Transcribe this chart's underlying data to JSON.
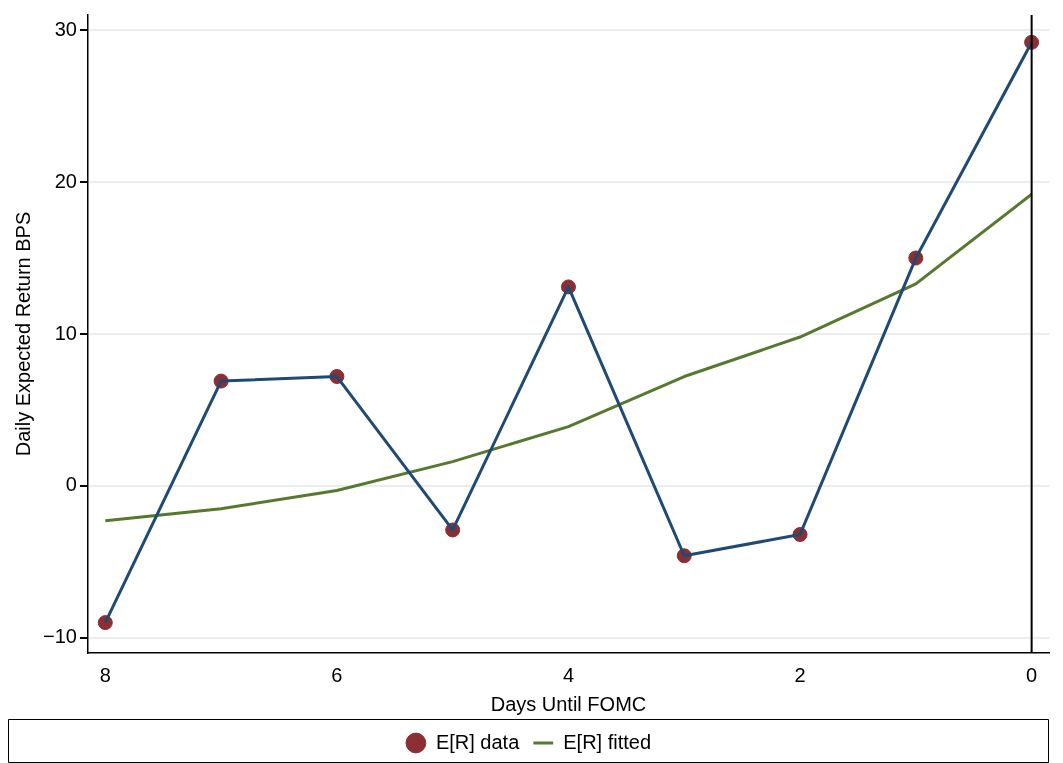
{
  "chart_data": {
    "type": "line",
    "xlabel": "Days Until FOMC",
    "ylabel": "Daily Expected Return BPS",
    "x": [
      8,
      7,
      6,
      5,
      4,
      3,
      2,
      1,
      0
    ],
    "series": [
      {
        "color": "#1f4a73",
        "values": [
          -9,
          6.9,
          7.2,
          -2.9,
          13.1,
          -4.6,
          -3.2,
          15.0,
          29.2
        ]
      },
      {
        "type": "scatter",
        "name": "E[R] data",
        "color": "#8b2f35",
        "marker": "circle",
        "values": [
          -9,
          6.9,
          7.2,
          -2.9,
          13.1,
          -4.6,
          -3.2,
          15.0,
          29.2
        ]
      },
      {
        "type": "line",
        "name": "E[R] fitted",
        "color": "#56792f",
        "values": [
          -2.3,
          -1.5,
          -0.3,
          1.6,
          3.9,
          7.2,
          9.8,
          13.3,
          19.2
        ]
      }
    ],
    "xlim": [
      8.15,
      -0.15
    ],
    "xticks": [
      8,
      6,
      4,
      2,
      0
    ],
    "ylim": [
      -11,
      31
    ],
    "yticks": [
      -10,
      0,
      10,
      20,
      30
    ],
    "ref_lines": [
      {
        "axis": "x",
        "value": 0,
        "color": "#000000"
      }
    ],
    "grid": "y",
    "legend": "bottom"
  }
}
